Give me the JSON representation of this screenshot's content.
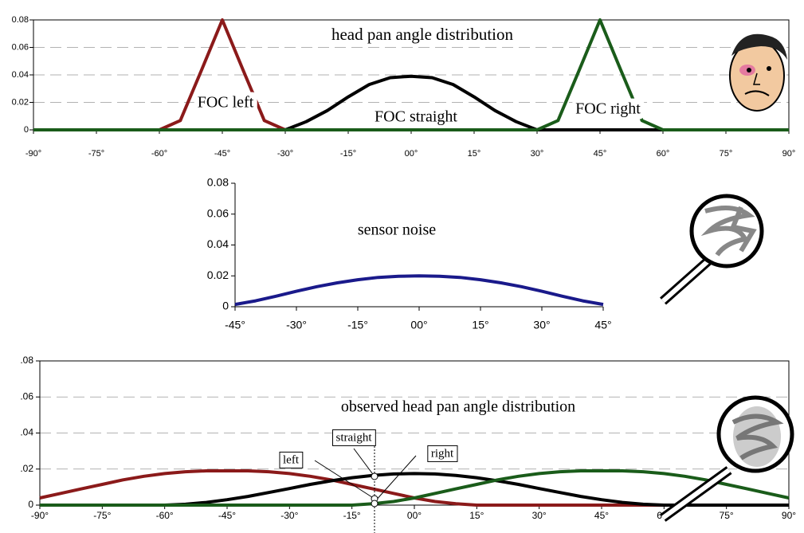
{
  "chart_data": [
    {
      "type": "line",
      "title": "head pan angle distribution",
      "x": [
        -90,
        -85,
        -80,
        -75,
        -70,
        -65,
        -60,
        -55,
        -50,
        -45,
        -40,
        -35,
        -30,
        -25,
        -20,
        -15,
        -10,
        -5,
        0,
        5,
        10,
        15,
        20,
        25,
        30,
        35,
        40,
        45,
        50,
        55,
        60,
        65,
        70,
        75,
        80,
        85,
        90
      ],
      "series": [
        {
          "name": "FOC left",
          "color": "#8b1a1a",
          "values": [
            0,
            0,
            0,
            0,
            0,
            0,
            0,
            0.0068,
            0.0432,
            0.08,
            0.0432,
            0.0068,
            0,
            0,
            0,
            0,
            0,
            0,
            0,
            0,
            0,
            0,
            0,
            0,
            0,
            0,
            0,
            0,
            0,
            0,
            0,
            0,
            0,
            0,
            0,
            0,
            0
          ]
        },
        {
          "name": "FOC straight",
          "color": "#000000",
          "values": [
            0,
            0,
            0,
            0,
            0,
            0,
            0,
            0,
            0,
            0,
            0,
            0,
            0,
            0.006,
            0.014,
            0.024,
            0.033,
            0.038,
            0.039,
            0.038,
            0.033,
            0.024,
            0.014,
            0.006,
            0,
            0,
            0,
            0,
            0,
            0,
            0,
            0,
            0,
            0,
            0,
            0,
            0
          ]
        },
        {
          "name": "FOC right",
          "color": "#1a5c1a",
          "values": [
            0,
            0,
            0,
            0,
            0,
            0,
            0,
            0,
            0,
            0,
            0,
            0,
            0,
            0,
            0,
            0,
            0,
            0,
            0,
            0,
            0,
            0,
            0,
            0,
            0,
            0.0068,
            0.0432,
            0.08,
            0.0432,
            0.0068,
            0,
            0,
            0,
            0,
            0,
            0,
            0
          ]
        }
      ],
      "xlim": [
        -90,
        90
      ],
      "xticks": [
        {
          "value": -90,
          "label": "-90°"
        },
        {
          "value": -75,
          "label": "-75°"
        },
        {
          "value": -60,
          "label": "-60°"
        },
        {
          "value": -45,
          "label": "-45°"
        },
        {
          "value": -30,
          "label": "-30°"
        },
        {
          "value": -15,
          "label": "-15°"
        },
        {
          "value": 0,
          "label": "00°"
        },
        {
          "value": 15,
          "label": "15°"
        },
        {
          "value": 30,
          "label": "30°"
        },
        {
          "value": 45,
          "label": "45°"
        },
        {
          "value": 60,
          "label": "60°"
        },
        {
          "value": 75,
          "label": "75°"
        },
        {
          "value": 90,
          "label": "90°"
        }
      ],
      "ylim": [
        0,
        0.08
      ],
      "yticks": [
        0,
        0.02,
        0.04,
        0.06,
        0.08
      ],
      "grid": true
    },
    {
      "type": "line",
      "title": "sensor noise",
      "x": [
        -45,
        -40,
        -35,
        -30,
        -25,
        -20,
        -15,
        -10,
        -5,
        0,
        5,
        10,
        15,
        20,
        25,
        30,
        35,
        40,
        45
      ],
      "series": [
        {
          "color": "#1a1a8b",
          "values": [
            0.0015,
            0.0038,
            0.0068,
            0.01,
            0.013,
            0.0155,
            0.0175,
            0.019,
            0.0197,
            0.02,
            0.0197,
            0.019,
            0.0175,
            0.0155,
            0.013,
            0.01,
            0.0068,
            0.0038,
            0.0015
          ]
        }
      ],
      "xlim": [
        -45,
        45
      ],
      "xticks": [
        {
          "value": -45,
          "label": "-45°"
        },
        {
          "value": -30,
          "label": "-30°"
        },
        {
          "value": -15,
          "label": "-15°"
        },
        {
          "value": 0,
          "label": "00°"
        },
        {
          "value": 15,
          "label": "15°"
        },
        {
          "value": 30,
          "label": "30°"
        },
        {
          "value": 45,
          "label": "45°"
        }
      ],
      "ylim": [
        0,
        0.08
      ],
      "yticks": [
        0,
        0.02,
        0.04,
        0.06,
        0.08
      ],
      "grid": false
    },
    {
      "type": "line",
      "title": "observed head pan angle distribution",
      "x": [
        -90,
        -85,
        -80,
        -75,
        -70,
        -65,
        -60,
        -55,
        -50,
        -45,
        -40,
        -35,
        -30,
        -25,
        -20,
        -15,
        -10,
        -5,
        0,
        5,
        10,
        15,
        20,
        25,
        30,
        35,
        40,
        45,
        50,
        55,
        60,
        65,
        70,
        75,
        80,
        85,
        90
      ],
      "series": [
        {
          "name": "left",
          "color": "#8b1a1a",
          "values": [
            0.004,
            0.0065,
            0.009,
            0.0115,
            0.014,
            0.016,
            0.0175,
            0.0185,
            0.019,
            0.019,
            0.019,
            0.0185,
            0.0175,
            0.016,
            0.014,
            0.0115,
            0.009,
            0.0065,
            0.004,
            0.002,
            0.0008,
            0,
            0,
            0,
            0,
            0,
            0,
            0,
            0,
            0,
            0,
            0,
            0,
            0,
            0,
            0,
            0
          ]
        },
        {
          "name": "straight",
          "color": "#000000",
          "values": [
            0,
            0,
            0,
            0,
            0,
            0,
            0,
            0.0005,
            0.0015,
            0.003,
            0.0048,
            0.007,
            0.0092,
            0.0115,
            0.0135,
            0.0152,
            0.0165,
            0.0173,
            0.0175,
            0.0173,
            0.0165,
            0.0152,
            0.0135,
            0.0115,
            0.0092,
            0.007,
            0.0048,
            0.003,
            0.0015,
            0.0005,
            0,
            0,
            0,
            0,
            0,
            0,
            0
          ]
        },
        {
          "name": "right",
          "color": "#1a5c1a",
          "values": [
            0,
            0,
            0,
            0,
            0,
            0,
            0,
            0,
            0,
            0,
            0,
            0,
            0,
            0,
            0,
            0,
            0.0008,
            0.002,
            0.004,
            0.0065,
            0.009,
            0.0115,
            0.014,
            0.016,
            0.0175,
            0.0185,
            0.019,
            0.019,
            0.019,
            0.0185,
            0.0175,
            0.016,
            0.014,
            0.0115,
            0.009,
            0.0065,
            0.004
          ]
        }
      ],
      "xlim": [
        -90,
        90
      ],
      "xticks": [
        {
          "value": -90,
          "label": "-90°"
        },
        {
          "value": -75,
          "label": "-75°"
        },
        {
          "value": -60,
          "label": "-60°"
        },
        {
          "value": -45,
          "label": "-45°"
        },
        {
          "value": -30,
          "label": "-30°"
        },
        {
          "value": -15,
          "label": "-15°"
        },
        {
          "value": 0,
          "label": "00°"
        },
        {
          "value": 15,
          "label": "15°"
        },
        {
          "value": 30,
          "label": "30°"
        },
        {
          "value": 45,
          "label": "45°"
        },
        {
          "value": 60,
          "label": "60°"
        },
        {
          "value": 75,
          "label": "75°"
        },
        {
          "value": 90,
          "label": "90°"
        }
      ],
      "ylim": [
        0,
        0.08
      ],
      "yticks": [
        {
          "value": 0,
          "label": "0"
        },
        {
          "value": 0.02,
          "label": ".02"
        },
        {
          "value": 0.04,
          "label": ".04"
        },
        {
          "value": 0.06,
          "label": ".06"
        },
        {
          "value": 0.08,
          "label": ".08"
        }
      ],
      "grid": true
    }
  ]
}
